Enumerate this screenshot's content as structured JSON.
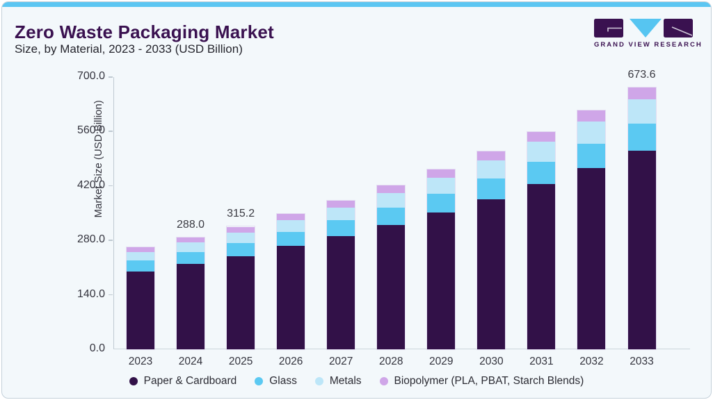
{
  "header": {
    "title": "Zero Waste Packaging Market",
    "subtitle": "Size, by Material, 2023 - 2033 (USD Billion)",
    "logo": {
      "wordmark": "GRAND VIEW RESEARCH",
      "purple": "#3A1150",
      "blue": "#56C5F1"
    }
  },
  "page_colors": {
    "card_background": "#F3F8FB",
    "card_border": "#C4D0D9",
    "top_accent": "#5CC6F2",
    "axis_line": "#BFC9D1"
  },
  "chart_data": {
    "type": "bar",
    "stacked": true,
    "title": "Zero Waste Packaging Market Size, by Material, 2023 - 2033 (USD Billion)",
    "xlabel": "",
    "ylabel": "Market Size (USD Billion)",
    "ylim": [
      0,
      700
    ],
    "yticks": [
      0.0,
      140.0,
      280.0,
      420.0,
      560.0,
      700.0
    ],
    "grid": false,
    "legend_position": "bottom",
    "categories": [
      "2023",
      "2024",
      "2025",
      "2026",
      "2027",
      "2028",
      "2029",
      "2030",
      "2031",
      "2032",
      "2033"
    ],
    "series": [
      {
        "name": "Paper & Cardboard",
        "color": "#321148",
        "values": [
          200.0,
          219.4,
          240.0,
          265.2,
          291.4,
          320.1,
          351.7,
          386.4,
          424.5,
          466.4,
          511.6
        ]
      },
      {
        "name": "Glass",
        "color": "#5BC9F2",
        "values": [
          28.0,
          30.5,
          33.2,
          36.5,
          39.9,
          43.6,
          47.7,
          52.1,
          56.9,
          62.2,
          68.0
        ]
      },
      {
        "name": "Metals",
        "color": "#BDE6F8",
        "values": [
          22.0,
          24.5,
          27.1,
          30.3,
          33.7,
          37.5,
          41.8,
          46.5,
          51.7,
          57.5,
          64.0
        ]
      },
      {
        "name": "Biopolymer (PLA, PBAT, Starch Blends)",
        "color": "#CFA6E8",
        "values": [
          12.5,
          13.6,
          14.9,
          16.3,
          17.8,
          19.4,
          21.2,
          23.1,
          25.2,
          27.5,
          30.0
        ]
      }
    ],
    "total_labels": {
      "2024": "288.0",
      "2025": "315.2",
      "2033": "673.6"
    }
  }
}
